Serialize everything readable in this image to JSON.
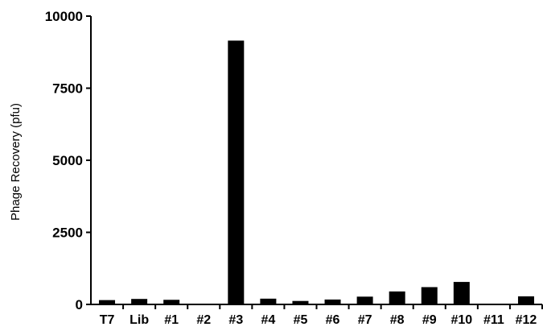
{
  "chart_data": {
    "type": "bar",
    "title": "",
    "xlabel": "",
    "ylabel": "Phage Recovery (pfu)",
    "ylim": [
      0,
      10000
    ],
    "yticks": [
      "10000",
      "7500",
      "5000",
      "2500",
      "0"
    ],
    "ytick_values": [
      10000,
      7500,
      5000,
      2500,
      0
    ],
    "categories": [
      "T7",
      "Lib",
      "#1",
      "#2",
      "#3",
      "#4",
      "#5",
      "#6",
      "#7",
      "#8",
      "#9",
      "#10",
      "#11",
      "#12"
    ],
    "values": [
      150,
      190,
      160,
      0,
      9150,
      200,
      120,
      170,
      270,
      450,
      600,
      780,
      0,
      280
    ],
    "grid": false,
    "bar_color": "#000000"
  }
}
